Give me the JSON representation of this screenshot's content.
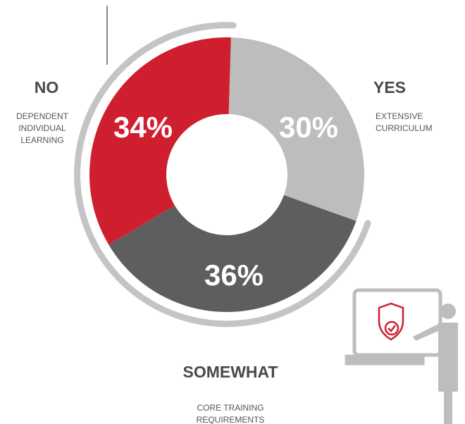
{
  "chart_data": {
    "type": "pie",
    "categories": [
      "YES",
      "SOMEWHAT",
      "NO"
    ],
    "values": [
      30,
      36,
      34
    ],
    "value_labels": [
      "30%",
      "36%",
      "34%"
    ],
    "descriptions": [
      [
        "EXTENSIVE",
        "CURRICULUM"
      ],
      [
        "CORE TRAINING",
        "REQUIREMENTS"
      ],
      [
        "DEPENDENT",
        "INDIVIDUAL",
        "LEARNING"
      ]
    ],
    "colors": [
      "#bdbdbd",
      "#5e5e5e",
      "#cf1f2e"
    ],
    "donut": true
  }
}
